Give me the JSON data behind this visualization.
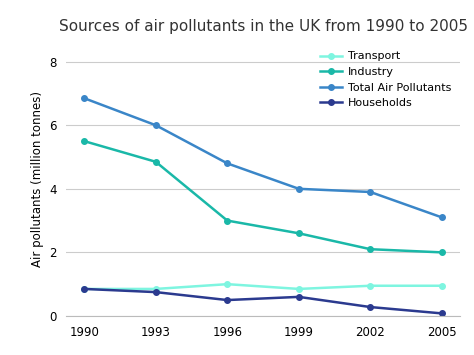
{
  "title": "Sources of air pollutants in the UK from 1990 to 2005",
  "xlabel": "",
  "ylabel": "Air pollutants (million tonnes)",
  "years": [
    1990,
    1993,
    1996,
    1999,
    2002,
    2005
  ],
  "series": {
    "Transport": {
      "values": [
        0.85,
        0.85,
        1.0,
        0.85,
        0.95,
        0.95
      ],
      "color": "#7ef5e0",
      "linewidth": 1.8,
      "marker": "o",
      "markersize": 4
    },
    "Industry": {
      "values": [
        5.5,
        4.85,
        3.0,
        2.6,
        2.1,
        2.0
      ],
      "color": "#1ab8a8",
      "linewidth": 1.8,
      "marker": "o",
      "markersize": 4
    },
    "Total Air Pollutants": {
      "values": [
        6.85,
        6.0,
        4.8,
        4.0,
        3.9,
        3.1
      ],
      "color": "#3a86c8",
      "linewidth": 1.8,
      "marker": "o",
      "markersize": 4
    },
    "Households": {
      "values": [
        0.85,
        0.75,
        0.5,
        0.6,
        0.28,
        0.08
      ],
      "color": "#2b3a8f",
      "linewidth": 1.8,
      "marker": "o",
      "markersize": 4
    }
  },
  "ylim": [
    0,
    8.6
  ],
  "yticks": [
    0,
    2,
    4,
    6,
    8
  ],
  "xticks": [
    1990,
    1993,
    1996,
    1999,
    2002,
    2005
  ],
  "legend_order": [
    "Transport",
    "Industry",
    "Total Air Pollutants",
    "Households"
  ],
  "background_color": "#ffffff",
  "grid_color": "#cccccc",
  "title_fontsize": 11,
  "label_fontsize": 8.5,
  "tick_fontsize": 8.5,
  "legend_fontsize": 8.0
}
